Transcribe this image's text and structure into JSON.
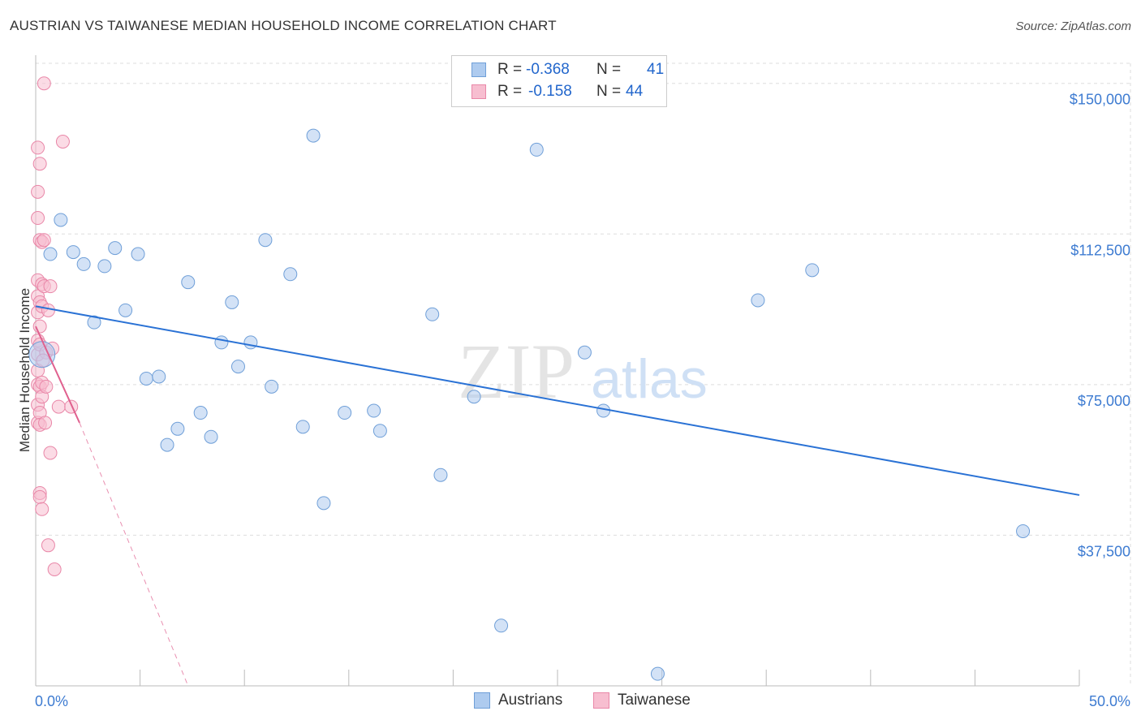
{
  "title": "AUSTRIAN VS TAIWANESE MEDIAN HOUSEHOLD INCOME CORRELATION CHART",
  "source": "Source: ZipAtlas.com",
  "watermark": {
    "zip": "ZIP",
    "atlas": "atlas"
  },
  "legend": {
    "rows": [
      {
        "r_label": "R =",
        "r_value": "-0.368",
        "n_label": "N =",
        "n_value": "41"
      },
      {
        "r_label": "R =",
        "r_value": "-0.158",
        "n_label": "N =",
        "n_value": "44"
      }
    ]
  },
  "bottom_legend": {
    "austrians": "Austrians",
    "taiwanese": "Taiwanese"
  },
  "colors": {
    "austrians_fill": "#aecbef",
    "austrians_stroke": "#6f9fd8",
    "austrians_line": "#2a72d5",
    "taiwanese_fill": "#f7bed0",
    "taiwanese_stroke": "#e987a8",
    "taiwanese_line": "#e0608e",
    "tick_label": "#3d7bd1",
    "grid": "#dddddd"
  },
  "chart_data": {
    "type": "scatter",
    "title": "AUSTRIAN VS TAIWANESE MEDIAN HOUSEHOLD INCOME CORRELATION CHART",
    "xlabel": "",
    "ylabel": "Median Household Income",
    "xlim": [
      0,
      50
    ],
    "ylim": [
      0,
      155000
    ],
    "x_tick_labels": [
      "0.0%",
      "50.0%"
    ],
    "y_ticks": [
      37500,
      75000,
      112500,
      150000
    ],
    "y_tick_labels": [
      "$37,500",
      "$75,000",
      "$112,500",
      "$150,000"
    ],
    "grid": true,
    "series": [
      {
        "name": "Austrians",
        "r": -0.368,
        "n": 41,
        "trend": {
          "x": [
            0,
            50
          ],
          "y": [
            94500,
            47500
          ]
        },
        "points": [
          {
            "x": 0.3,
            "y": 82500,
            "big": true
          },
          {
            "x": 0.7,
            "y": 107500
          },
          {
            "x": 1.2,
            "y": 116000
          },
          {
            "x": 1.8,
            "y": 108000
          },
          {
            "x": 2.3,
            "y": 105000
          },
          {
            "x": 2.8,
            "y": 90500
          },
          {
            "x": 3.3,
            "y": 104500
          },
          {
            "x": 3.8,
            "y": 109000
          },
          {
            "x": 4.3,
            "y": 93500
          },
          {
            "x": 4.9,
            "y": 107500
          },
          {
            "x": 5.3,
            "y": 76500
          },
          {
            "x": 5.9,
            "y": 77000
          },
          {
            "x": 6.3,
            "y": 60000
          },
          {
            "x": 6.8,
            "y": 64000
          },
          {
            "x": 7.3,
            "y": 100500
          },
          {
            "x": 7.9,
            "y": 68000
          },
          {
            "x": 8.4,
            "y": 62000
          },
          {
            "x": 8.9,
            "y": 85500
          },
          {
            "x": 9.4,
            "y": 95500
          },
          {
            "x": 9.7,
            "y": 79500
          },
          {
            "x": 10.3,
            "y": 85500
          },
          {
            "x": 11.0,
            "y": 111000
          },
          {
            "x": 11.3,
            "y": 74500
          },
          {
            "x": 12.2,
            "y": 102500
          },
          {
            "x": 12.8,
            "y": 64500
          },
          {
            "x": 13.3,
            "y": 137000
          },
          {
            "x": 13.8,
            "y": 45500
          },
          {
            "x": 14.8,
            "y": 68000
          },
          {
            "x": 16.2,
            "y": 68500
          },
          {
            "x": 16.5,
            "y": 63500
          },
          {
            "x": 19.0,
            "y": 92500
          },
          {
            "x": 19.4,
            "y": 52500
          },
          {
            "x": 21.0,
            "y": 72000
          },
          {
            "x": 22.3,
            "y": 15000
          },
          {
            "x": 24.0,
            "y": 133500
          },
          {
            "x": 26.3,
            "y": 83000
          },
          {
            "x": 27.2,
            "y": 68500
          },
          {
            "x": 29.8,
            "y": 3000
          },
          {
            "x": 34.6,
            "y": 96000
          },
          {
            "x": 37.2,
            "y": 103500
          },
          {
            "x": 47.3,
            "y": 38500
          }
        ]
      },
      {
        "name": "Taiwanese",
        "r": -0.158,
        "n": 44,
        "trend": {
          "x": [
            0,
            2.1
          ],
          "y": [
            89500,
            65500
          ]
        },
        "trend_dashed": {
          "x": [
            2.1,
            7.3
          ],
          "y": [
            65500,
            0
          ]
        },
        "points": [
          {
            "x": 0.1,
            "y": 134000
          },
          {
            "x": 0.1,
            "y": 123000
          },
          {
            "x": 0.1,
            "y": 116500
          },
          {
            "x": 0.1,
            "y": 101000
          },
          {
            "x": 0.1,
            "y": 97000
          },
          {
            "x": 0.1,
            "y": 93000
          },
          {
            "x": 0.1,
            "y": 86000
          },
          {
            "x": 0.1,
            "y": 82500
          },
          {
            "x": 0.1,
            "y": 78500
          },
          {
            "x": 0.1,
            "y": 75000
          },
          {
            "x": 0.1,
            "y": 70000
          },
          {
            "x": 0.1,
            "y": 65500
          },
          {
            "x": 0.2,
            "y": 130000
          },
          {
            "x": 0.2,
            "y": 111000
          },
          {
            "x": 0.2,
            "y": 95500
          },
          {
            "x": 0.2,
            "y": 89500
          },
          {
            "x": 0.2,
            "y": 85000
          },
          {
            "x": 0.2,
            "y": 74500
          },
          {
            "x": 0.2,
            "y": 68000
          },
          {
            "x": 0.2,
            "y": 65000
          },
          {
            "x": 0.2,
            "y": 48000
          },
          {
            "x": 0.2,
            "y": 47000
          },
          {
            "x": 0.3,
            "y": 110500
          },
          {
            "x": 0.3,
            "y": 100000
          },
          {
            "x": 0.3,
            "y": 94500
          },
          {
            "x": 0.3,
            "y": 75500
          },
          {
            "x": 0.3,
            "y": 72000
          },
          {
            "x": 0.3,
            "y": 44000
          },
          {
            "x": 0.4,
            "y": 150000
          },
          {
            "x": 0.4,
            "y": 111000
          },
          {
            "x": 0.4,
            "y": 99500
          },
          {
            "x": 0.5,
            "y": 83000
          },
          {
            "x": 0.5,
            "y": 74500
          },
          {
            "x": 0.6,
            "y": 93500
          },
          {
            "x": 0.6,
            "y": 35000
          },
          {
            "x": 0.7,
            "y": 99500
          },
          {
            "x": 0.7,
            "y": 58000
          },
          {
            "x": 0.8,
            "y": 84000
          },
          {
            "x": 0.9,
            "y": 29000
          },
          {
            "x": 1.1,
            "y": 69500
          },
          {
            "x": 1.3,
            "y": 135500
          },
          {
            "x": 1.7,
            "y": 69500
          },
          {
            "x": 0.35,
            "y": 81000
          },
          {
            "x": 0.45,
            "y": 65500
          }
        ]
      }
    ]
  }
}
